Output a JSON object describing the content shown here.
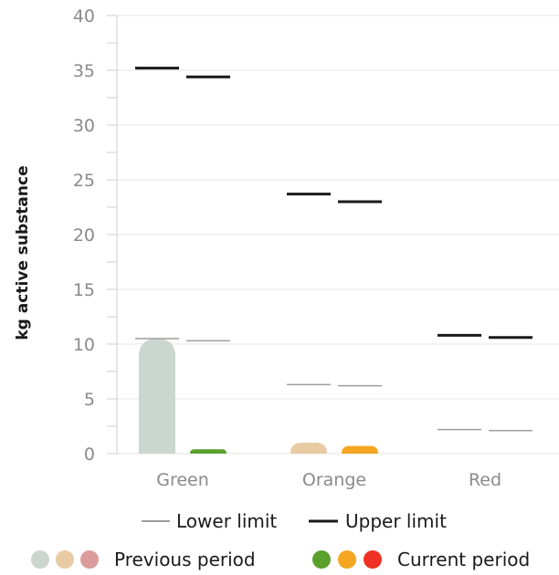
{
  "chart_data": {
    "type": "bar",
    "ylabel": "kg active substance",
    "ylim": [
      0,
      40
    ],
    "yticks": [
      0,
      5,
      10,
      15,
      20,
      25,
      30,
      35,
      40
    ],
    "grid": true,
    "categories": [
      "Green",
      "Orange",
      "Red"
    ],
    "series": [
      {
        "name": "Previous period",
        "values": [
          10.5,
          1.0,
          0
        ],
        "colors": [
          "#ccd6d0",
          "#e8cba2",
          "#dc9b9b"
        ],
        "lower_limit": [
          10.5,
          6.3,
          2.2
        ],
        "upper_limit": [
          35.2,
          23.7,
          10.8
        ]
      },
      {
        "name": "Current period",
        "values": [
          0.4,
          0.7,
          0
        ],
        "colors": [
          "#5aa02c",
          "#f5a623",
          "#ee3124"
        ],
        "lower_limit": [
          10.3,
          6.2,
          2.1
        ],
        "upper_limit": [
          34.4,
          23.0,
          10.6
        ]
      }
    ],
    "limit_legend": [
      "Lower limit",
      "Upper limit"
    ],
    "limit_colors": {
      "lower": "#9e9e9e",
      "upper": "#1a1a1a"
    },
    "legend_position": "bottom"
  }
}
